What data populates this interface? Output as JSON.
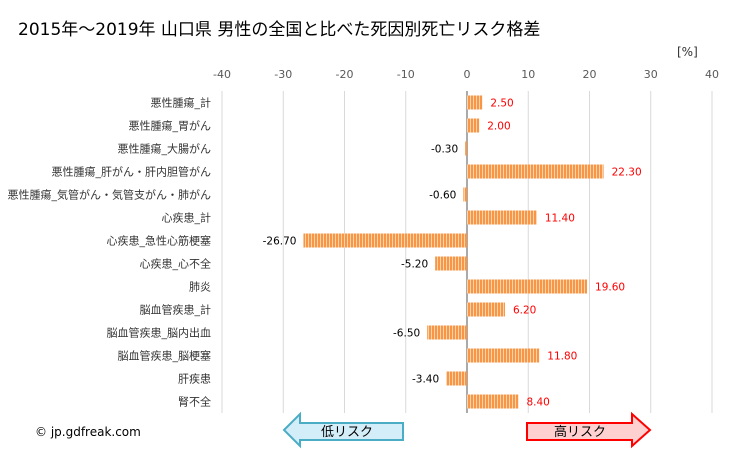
{
  "chart_data": {
    "type": "bar",
    "orientation": "horizontal",
    "title": "2015年～2019年 山口県 男性の全国と比べた死因別死亡リスク格差",
    "unit_label": "[%]",
    "xlim": [
      -40,
      40
    ],
    "ticks": [
      -40,
      -30,
      -20,
      -10,
      0,
      10,
      20,
      30,
      40
    ],
    "grid": true,
    "categories": [
      "悪性腫瘍_計",
      "悪性腫瘍_胃がん",
      "悪性腫瘍_大腸がん",
      "悪性腫瘍_肝がん・肝内胆管がん",
      "悪性腫瘍_気管がん・気管支がん・肺がん",
      "心疾患_計",
      "心疾患_急性心筋梗塞",
      "心疾患_心不全",
      "肺炎",
      "脳血管疾患_計",
      "脳血管疾患_脳内出血",
      "脳血管疾患_脳梗塞",
      "肝疾患",
      "腎不全"
    ],
    "values": [
      2.5,
      2.0,
      -0.3,
      22.3,
      -0.6,
      11.4,
      -26.7,
      -5.2,
      19.6,
      6.2,
      -6.5,
      11.8,
      -3.4,
      8.4
    ],
    "labels": [
      "2.50",
      "2.00",
      "-0.30",
      "22.30",
      "-0.60",
      "11.40",
      "-26.70",
      "-5.20",
      "19.60",
      "6.20",
      "-6.50",
      "11.80",
      "-3.40",
      "8.40"
    ],
    "bar_color": "#f79646",
    "positive_label_color": "#ff0000",
    "negative_label_color": "#000000"
  },
  "footer": {
    "copyright": "© jp.gdfreak.com",
    "low_risk": "低リスク",
    "high_risk": "高リスク"
  }
}
